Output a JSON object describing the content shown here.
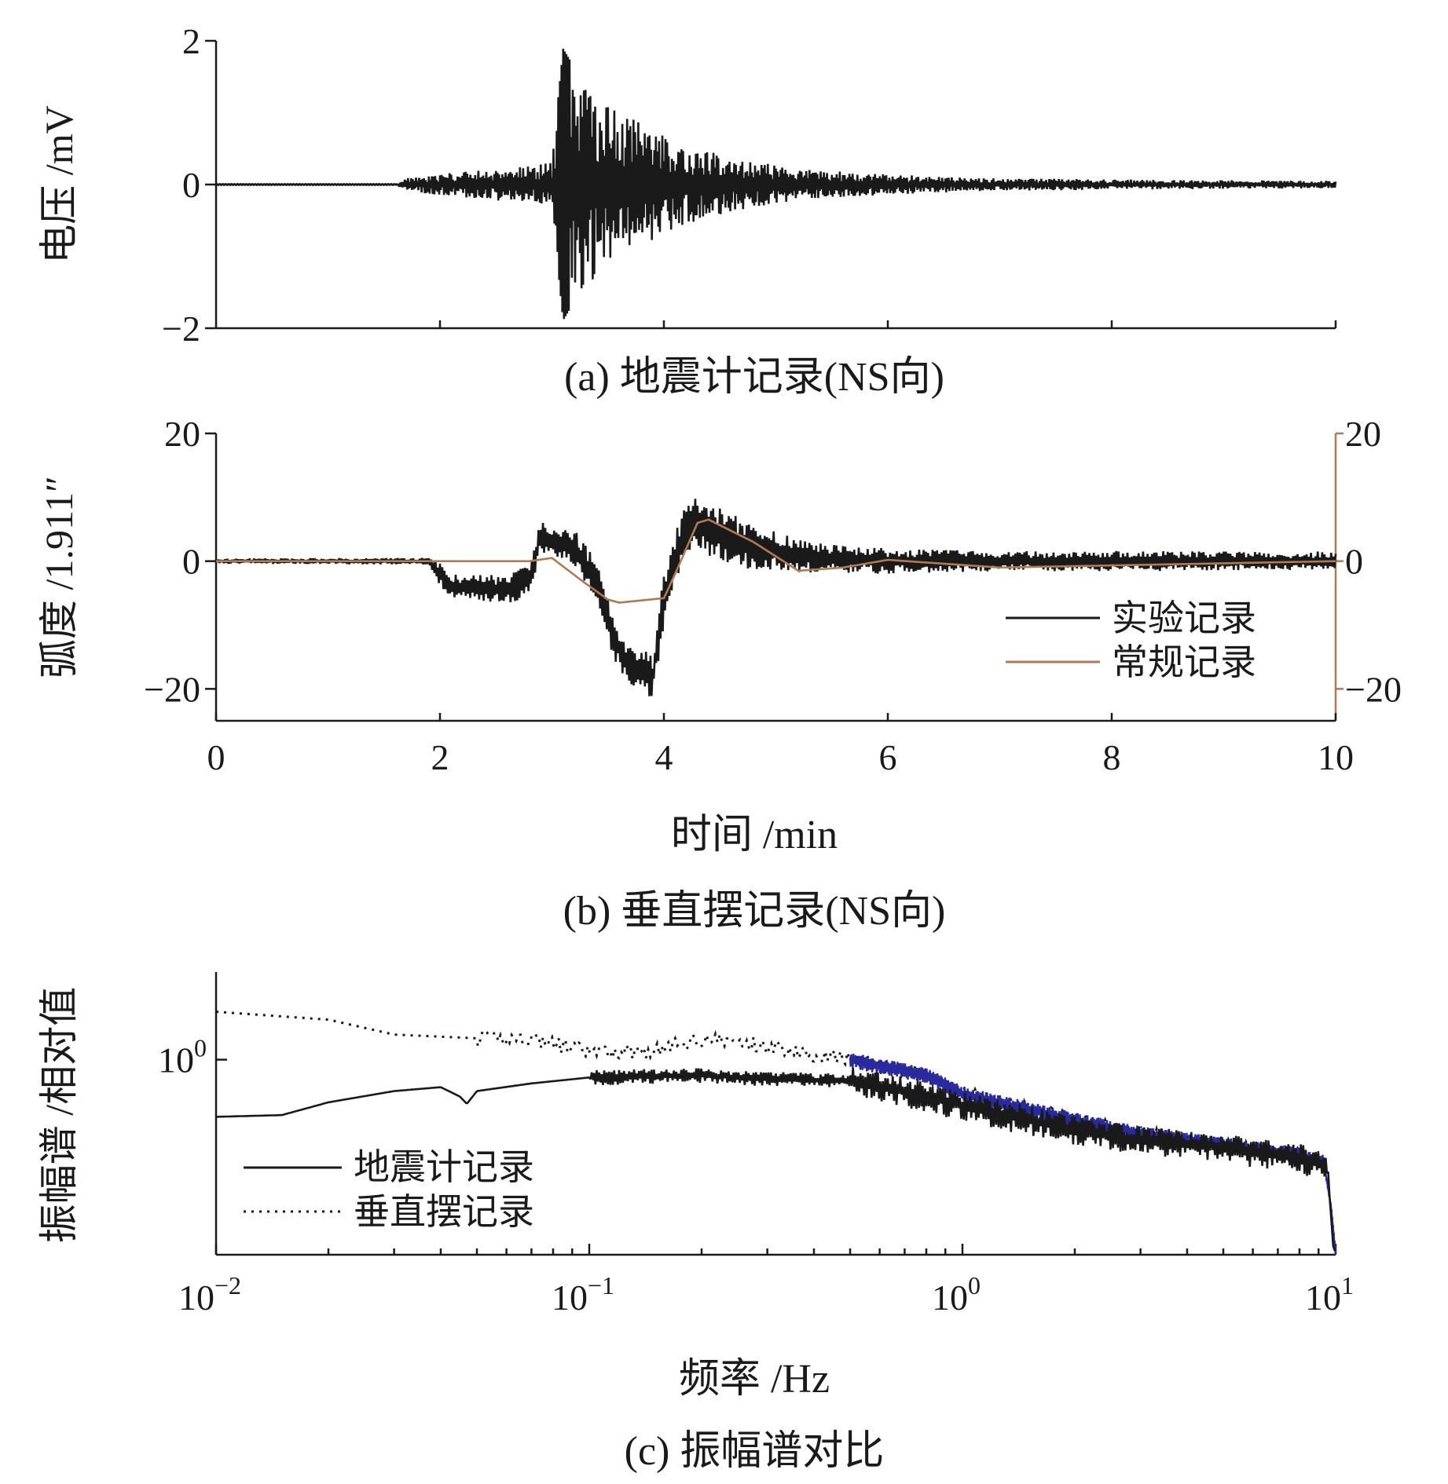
{
  "colors": {
    "black": "#1a1a1a",
    "brown": "#b07a55",
    "blue": "#2a2aa0"
  },
  "chart_data": [
    {
      "type": "line",
      "title": "(a) 地震计记录(NS向)",
      "xlabel": "",
      "ylabel": "电压 /mV",
      "xlim": [
        0,
        10
      ],
      "ylim": [
        -2,
        2
      ],
      "yticks": [
        {
          "v": 2,
          "label": "2"
        },
        {
          "v": 0,
          "label": "0"
        },
        {
          "v": -2,
          "label": "−2"
        }
      ],
      "xticks": [
        2,
        4,
        6,
        8,
        10
      ],
      "series": [
        {
          "name": "地震计记录",
          "color": "#1a1a1a",
          "envelope": {
            "t": [
              0,
              1.6,
              1.7,
              2.5,
              3.0,
              3.1,
              3.2,
              3.35,
              3.6,
              3.9,
              4.2,
              4.6,
              5.2,
              6.0,
              7.0,
              8.0,
              9.0,
              10.0
            ],
            "amp": [
              0.0,
              0.0,
              0.1,
              0.22,
              0.3,
              1.8,
              1.55,
              1.35,
              1.0,
              0.8,
              0.55,
              0.38,
              0.22,
              0.14,
              0.09,
              0.07,
              0.06,
              0.05
            ]
          }
        }
      ]
    },
    {
      "type": "line",
      "title": "(b) 垂直摆记录(NS向)",
      "xlabel": "时间 /min",
      "ylabel": "弧度 /1.911″",
      "xlim": [
        0,
        10
      ],
      "ylim": [
        -25,
        20
      ],
      "yticks": [
        {
          "v": 20,
          "label": "20"
        },
        {
          "v": 0,
          "label": "0"
        },
        {
          "v": -20,
          "label": "−20"
        }
      ],
      "yticks_right": [
        {
          "v": 20,
          "label": "20"
        },
        {
          "v": 0,
          "label": "0"
        },
        {
          "v": -20,
          "label": "−20"
        }
      ],
      "xticks": [
        {
          "v": 0,
          "label": "0"
        },
        {
          "v": 2,
          "label": "2"
        },
        {
          "v": 4,
          "label": "4"
        },
        {
          "v": 6,
          "label": "6"
        },
        {
          "v": 8,
          "label": "8"
        },
        {
          "v": 10,
          "label": "10"
        }
      ],
      "legend": "right",
      "series": [
        {
          "name": "实验记录",
          "color": "#1a1a1a",
          "trend": {
            "t": [
              0,
              1.9,
              2.1,
              2.6,
              2.8,
              2.9,
              3.2,
              3.4,
              3.55,
              3.7,
              3.9,
              4.0,
              4.2,
              4.4,
              4.8,
              5.4,
              6.0,
              10.0
            ],
            "v": [
              0,
              0,
              -4,
              -4.5,
              -3,
              4,
              2,
              -3,
              -12,
              -17,
              -18,
              -6,
              6,
              5,
              2,
              0.5,
              0,
              0
            ]
          },
          "noise": {
            "t": [
              0,
              1.9,
              2.0,
              2.9,
              3.5,
              4.2,
              4.6,
              5.5,
              7.0,
              10.0
            ],
            "amp": [
              0.4,
              0.5,
              1.8,
              2.6,
              3.2,
              4.2,
              4.0,
              2.2,
              1.6,
              1.5
            ]
          }
        },
        {
          "name": "常规记录",
          "color": "#b07a55",
          "points": {
            "t": [
              0,
              1.9,
              2.1,
              2.8,
              3.0,
              3.3,
              3.5,
              3.6,
              4.0,
              4.1,
              4.3,
              4.4,
              4.8,
              5.2,
              5.6,
              6.0,
              7.0,
              10.0
            ],
            "v": [
              0,
              0,
              0,
              0,
              0.5,
              -3.5,
              -6,
              -6.5,
              -5.8,
              -2,
              6,
              6.5,
              3,
              -1.5,
              -1,
              0.2,
              -1,
              0
            ]
          }
        }
      ]
    },
    {
      "type": "line",
      "title": "(c) 振幅谱对比",
      "xlabel": "频率 /Hz",
      "ylabel": "振幅谱 /相对值",
      "xscale": "log",
      "yscale": "log",
      "xlim": [
        0.01,
        10
      ],
      "ylim": [
        0.13,
        2.5
      ],
      "yticks": [
        {
          "v": 1,
          "base": "10",
          "exp": "0"
        }
      ],
      "xticks": [
        {
          "v": 0.01,
          "base": "10",
          "exp": "−2"
        },
        {
          "v": 0.1,
          "base": "10",
          "exp": "−1"
        },
        {
          "v": 1,
          "base": "10",
          "exp": "0"
        },
        {
          "v": 10,
          "base": "10",
          "exp": "1"
        }
      ],
      "legend": "lower-left",
      "series": [
        {
          "name": "地震计记录",
          "color": "#1a1a1a",
          "style": "solid",
          "points": {
            "f": [
              0.01,
              0.015,
              0.02,
              0.03,
              0.04,
              0.045,
              0.047,
              0.05,
              0.07,
              0.1,
              0.2,
              0.3,
              0.5,
              0.7,
              1.0,
              2.0,
              3.0,
              5.0,
              8.0,
              9.5,
              10.0
            ],
            "a": [
              0.55,
              0.56,
              0.64,
              0.72,
              0.75,
              0.68,
              0.63,
              0.72,
              0.78,
              0.83,
              0.85,
              0.82,
              0.8,
              0.72,
              0.62,
              0.48,
              0.43,
              0.4,
              0.36,
              0.33,
              0.1
            ]
          }
        },
        {
          "name": "垂直摆记录",
          "color": "#1a1a1a",
          "style": "dotted",
          "points": {
            "f": [
              0.01,
              0.02,
              0.03,
              0.05,
              0.07,
              0.1,
              0.15,
              0.2,
              0.3,
              0.5,
              0.8,
              1.0,
              2.0,
              3.0,
              5.0,
              8.0,
              9.3,
              9.7,
              10.0
            ],
            "a": [
              1.65,
              1.52,
              1.3,
              1.25,
              1.25,
              1.08,
              1.1,
              1.25,
              1.15,
              1.0,
              0.85,
              0.7,
              0.53,
              0.46,
              0.41,
              0.37,
              0.34,
              0.22,
              0.13
            ]
          }
        }
      ]
    }
  ]
}
